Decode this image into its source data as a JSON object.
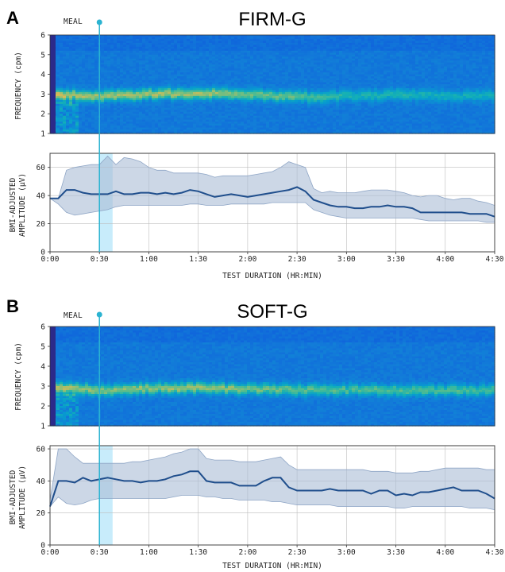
{
  "figure": {
    "meal_label": "MEAL",
    "meal_time_min": 30,
    "highlight_window_min": [
      30,
      38
    ]
  },
  "colors": {
    "line": "#1f4e8c",
    "band_fill": "#aabcd6",
    "band_stroke": "#8fa6c6",
    "meal_line": "#2bb3d1",
    "highlight": "#c8ecfb",
    "grid": "#bdbdbd"
  },
  "chart_data": [
    {
      "type": "heatmap",
      "panel": "A",
      "title": "FIRM-G",
      "ylabel": "FREQUENCY (cpm)",
      "xlim": [
        0,
        270
      ],
      "ylim": [
        1,
        6
      ],
      "yticks": [
        "1",
        "2",
        "3",
        "4",
        "5",
        "6"
      ],
      "dominant_band_cpm": [
        [
          0,
          3.0
        ],
        [
          10,
          2.95
        ],
        [
          30,
          2.9
        ],
        [
          60,
          3.0
        ],
        [
          90,
          3.05
        ],
        [
          120,
          2.95
        ],
        [
          150,
          2.85
        ],
        [
          180,
          2.9
        ],
        [
          210,
          2.95
        ],
        [
          240,
          2.9
        ],
        [
          270,
          2.9
        ]
      ],
      "band_intensity": [
        [
          0,
          1.0
        ],
        [
          10,
          0.9
        ],
        [
          30,
          0.85
        ],
        [
          60,
          0.85
        ],
        [
          90,
          0.85
        ],
        [
          120,
          0.75
        ],
        [
          150,
          0.7
        ],
        [
          165,
          0.6
        ],
        [
          180,
          0.5
        ],
        [
          210,
          0.5
        ],
        [
          240,
          0.45
        ],
        [
          270,
          0.45
        ]
      ]
    },
    {
      "type": "line",
      "panel": "A",
      "ylabel_lines": [
        "BMI-ADJUSTED",
        "AMPLITUDE (μV)"
      ],
      "xlabel": "TEST DURATION (HR:MIN)",
      "xlim": [
        0,
        270
      ],
      "ylim": [
        0,
        70
      ],
      "yticks": [
        "0",
        "20",
        "40",
        "60"
      ],
      "xticks": [
        "0:00",
        "0:30",
        "1:00",
        "1:30",
        "2:00",
        "2:30",
        "3:00",
        "3:30",
        "4:00",
        "4:30"
      ],
      "x": [
        0,
        5,
        10,
        15,
        20,
        25,
        30,
        35,
        40,
        45,
        50,
        55,
        60,
        65,
        70,
        75,
        80,
        85,
        90,
        95,
        100,
        105,
        110,
        115,
        120,
        125,
        130,
        135,
        140,
        145,
        150,
        155,
        160,
        165,
        170,
        175,
        180,
        185,
        190,
        195,
        200,
        205,
        210,
        215,
        220,
        225,
        230,
        235,
        240,
        245,
        250,
        255,
        260,
        265,
        270
      ],
      "values": [
        38,
        38,
        44,
        44,
        42,
        41,
        41,
        41,
        43,
        41,
        41,
        42,
        42,
        41,
        42,
        41,
        42,
        44,
        43,
        41,
        39,
        40,
        41,
        40,
        39,
        40,
        41,
        42,
        43,
        44,
        46,
        43,
        37,
        35,
        33,
        32,
        32,
        31,
        31,
        32,
        32,
        33,
        32,
        32,
        31,
        28,
        28,
        28,
        28,
        28,
        28,
        27,
        27,
        27,
        25
      ],
      "lower": [
        38,
        34,
        28,
        26,
        27,
        28,
        29,
        30,
        32,
        33,
        33,
        33,
        33,
        33,
        33,
        33,
        33,
        34,
        34,
        33,
        33,
        33,
        34,
        34,
        34,
        34,
        34,
        35,
        35,
        35,
        35,
        35,
        30,
        28,
        26,
        25,
        24,
        24,
        24,
        24,
        24,
        24,
        24,
        24,
        24,
        23,
        22,
        22,
        22,
        22,
        22,
        22,
        22,
        21,
        21
      ],
      "upper": [
        38,
        38,
        58,
        60,
        61,
        62,
        62,
        68,
        62,
        67,
        66,
        64,
        60,
        58,
        58,
        56,
        56,
        56,
        56,
        55,
        53,
        54,
        54,
        54,
        54,
        55,
        56,
        57,
        60,
        64,
        62,
        60,
        45,
        42,
        43,
        42,
        42,
        42,
        43,
        44,
        44,
        44,
        43,
        42,
        40,
        39,
        40,
        40,
        38,
        37,
        38,
        38,
        36,
        35,
        33
      ]
    },
    {
      "type": "heatmap",
      "panel": "B",
      "title": "SOFT-G",
      "ylabel": "FREQUENCY (cpm)",
      "xlim": [
        0,
        270
      ],
      "ylim": [
        1,
        6
      ],
      "yticks": [
        "1",
        "2",
        "3",
        "4",
        "5",
        "6"
      ],
      "dominant_band_cpm": [
        [
          0,
          2.9
        ],
        [
          10,
          2.85
        ],
        [
          30,
          2.8
        ],
        [
          60,
          2.9
        ],
        [
          90,
          2.9
        ],
        [
          120,
          2.85
        ],
        [
          150,
          2.8
        ],
        [
          180,
          2.8
        ],
        [
          210,
          2.8
        ],
        [
          240,
          2.75
        ],
        [
          270,
          2.8
        ]
      ],
      "band_intensity": [
        [
          0,
          1.0
        ],
        [
          10,
          0.85
        ],
        [
          30,
          0.8
        ],
        [
          60,
          0.8
        ],
        [
          90,
          0.85
        ],
        [
          120,
          0.75
        ],
        [
          150,
          0.7
        ],
        [
          180,
          0.65
        ],
        [
          210,
          0.65
        ],
        [
          240,
          0.65
        ],
        [
          270,
          0.6
        ]
      ]
    },
    {
      "type": "line",
      "panel": "B",
      "ylabel_lines": [
        "BMI-ADJUSTED",
        "AMPLITUDE (μV)"
      ],
      "xlabel": "TEST DURATION (HR:MIN)",
      "xlim": [
        0,
        270
      ],
      "ylim": [
        0,
        62
      ],
      "yticks": [
        "0",
        "20",
        "40",
        "60"
      ],
      "xticks": [
        "0:00",
        "0:30",
        "1:00",
        "1:30",
        "2:00",
        "2:30",
        "3:00",
        "3:30",
        "4:00",
        "4:30"
      ],
      "x": [
        0,
        5,
        10,
        15,
        20,
        25,
        30,
        35,
        40,
        45,
        50,
        55,
        60,
        65,
        70,
        75,
        80,
        85,
        90,
        95,
        100,
        105,
        110,
        115,
        120,
        125,
        130,
        135,
        140,
        145,
        150,
        155,
        160,
        165,
        170,
        175,
        180,
        185,
        190,
        195,
        200,
        205,
        210,
        215,
        220,
        225,
        230,
        235,
        240,
        245,
        250,
        255,
        260,
        265,
        270
      ],
      "values": [
        24,
        40,
        40,
        39,
        42,
        40,
        41,
        42,
        41,
        40,
        40,
        39,
        40,
        40,
        41,
        43,
        44,
        46,
        46,
        40,
        39,
        39,
        39,
        37,
        37,
        37,
        40,
        42,
        42,
        36,
        34,
        34,
        34,
        34,
        35,
        34,
        34,
        34,
        34,
        32,
        34,
        34,
        31,
        32,
        31,
        33,
        33,
        34,
        35,
        36,
        34,
        34,
        34,
        32,
        29
      ],
      "lower": [
        24,
        30,
        26,
        25,
        26,
        28,
        29,
        29,
        29,
        29,
        29,
        29,
        29,
        29,
        29,
        30,
        31,
        31,
        31,
        30,
        30,
        29,
        29,
        28,
        28,
        28,
        28,
        27,
        27,
        26,
        25,
        25,
        25,
        25,
        25,
        24,
        24,
        24,
        24,
        24,
        24,
        24,
        23,
        23,
        24,
        24,
        24,
        24,
        24,
        24,
        24,
        23,
        23,
        23,
        22
      ],
      "upper": [
        28,
        60,
        60,
        55,
        51,
        51,
        51,
        51,
        51,
        51,
        52,
        52,
        53,
        54,
        55,
        57,
        58,
        60,
        60,
        54,
        53,
        53,
        53,
        52,
        52,
        52,
        53,
        54,
        55,
        50,
        47,
        47,
        47,
        47,
        47,
        47,
        47,
        47,
        47,
        46,
        46,
        46,
        45,
        45,
        45,
        46,
        46,
        47,
        48,
        48,
        48,
        48,
        48,
        47,
        47
      ]
    }
  ]
}
